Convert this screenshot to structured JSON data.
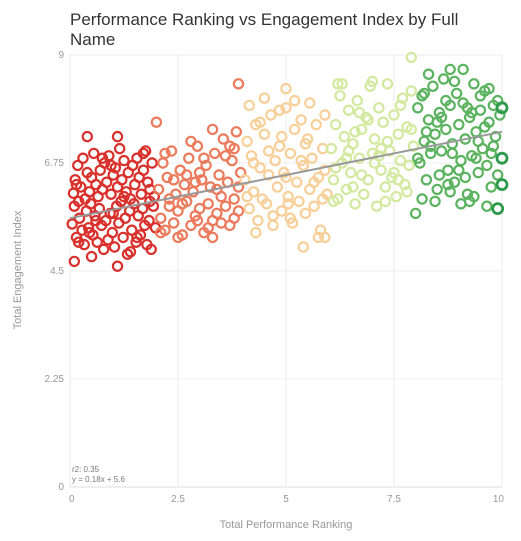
{
  "chart_data": {
    "type": "scatter",
    "title": "Performance Ranking vs Engagement Index by Full Name",
    "xlabel": "Total Performance Ranking",
    "ylabel": "Total Engagement Index",
    "xlim": [
      0,
      10
    ],
    "ylim": [
      0,
      9
    ],
    "x_ticks": [
      "0",
      "2.5",
      "5",
      "7.5",
      "10"
    ],
    "y_ticks": [
      "0",
      "2.25",
      "4.5",
      "6.75",
      "9"
    ],
    "grid": true,
    "legend": "none",
    "marker": "hollow circle",
    "color_encoding": "points colored by x value from red (low) to green (high)",
    "color_bands": [
      {
        "x_from": 0,
        "x_to": 2,
        "color": "#d9302c"
      },
      {
        "x_from": 2,
        "x_to": 4,
        "color": "#ec7a5c"
      },
      {
        "x_from": 4,
        "x_to": 6,
        "color": "#f8cf98"
      },
      {
        "x_from": 6,
        "x_to": 8,
        "color": "#d3e9a0"
      },
      {
        "x_from": 8,
        "x_to": 10,
        "color": "#5cb35f"
      }
    ],
    "regression": {
      "r2_label": "r2: 0.35",
      "equation_label": "y = 0.18x + 5.6",
      "slope": 0.18,
      "intercept": 5.6,
      "x_range": [
        0,
        10
      ],
      "color": "#999999"
    },
    "highlight_points": [
      {
        "x": 0.1,
        "y": 4.7
      },
      {
        "x": 0.5,
        "y": 4.8
      },
      {
        "x": 1.1,
        "y": 4.6
      },
      {
        "x": 0.4,
        "y": 7.3
      },
      {
        "x": 1.1,
        "y": 7.3
      },
      {
        "x": 2.0,
        "y": 7.6
      },
      {
        "x": 3.9,
        "y": 8.4
      },
      {
        "x": 5.0,
        "y": 8.3
      },
      {
        "x": 6.2,
        "y": 8.4
      },
      {
        "x": 7.9,
        "y": 8.95
      },
      {
        "x": 8.8,
        "y": 8.7
      },
      {
        "x": 9.1,
        "y": 8.7
      },
      {
        "x": 10.0,
        "y": 7.9
      },
      {
        "x": 10.0,
        "y": 6.85
      },
      {
        "x": 10.0,
        "y": 6.3
      },
      {
        "x": 9.9,
        "y": 5.8
      },
      {
        "x": 8.0,
        "y": 5.7
      },
      {
        "x": 5.4,
        "y": 5.0
      },
      {
        "x": 5.9,
        "y": 5.2
      },
      {
        "x": 3.3,
        "y": 5.2
      }
    ],
    "points": [
      [
        0.05,
        5.48
      ],
      [
        0.08,
        6.12
      ],
      [
        0.1,
        5.85
      ],
      [
        0.12,
        6.4
      ],
      [
        0.15,
        5.2
      ],
      [
        0.18,
        6.7
      ],
      [
        0.2,
        5.95
      ],
      [
        0.22,
        5.6
      ],
      [
        0.25,
        6.25
      ],
      [
        0.28,
        5.35
      ],
      [
        0.3,
        6.85
      ],
      [
        0.33,
        5.05
      ],
      [
        0.35,
        6.0
      ],
      [
        0.38,
        5.75
      ],
      [
        0.4,
        6.55
      ],
      [
        0.43,
        5.4
      ],
      [
        0.45,
        6.15
      ],
      [
        0.48,
        5.9
      ],
      [
        0.5,
        6.45
      ],
      [
        0.53,
        5.25
      ],
      [
        0.55,
        6.95
      ],
      [
        0.58,
        5.65
      ],
      [
        0.6,
        6.3
      ],
      [
        0.63,
        5.1
      ],
      [
        0.65,
        6.05
      ],
      [
        0.68,
        5.8
      ],
      [
        0.7,
        6.6
      ],
      [
        0.73,
        5.45
      ],
      [
        0.75,
        6.2
      ],
      [
        0.78,
        4.95
      ],
      [
        0.8,
        6.75
      ],
      [
        0.83,
        5.55
      ],
      [
        0.85,
        6.35
      ],
      [
        0.88,
        5.15
      ],
      [
        0.9,
        6.9
      ],
      [
        0.93,
        5.7
      ],
      [
        0.95,
        6.1
      ],
      [
        0.98,
        5.3
      ],
      [
        1.0,
        6.5
      ],
      [
        1.03,
        5.0
      ],
      [
        1.05,
        6.65
      ],
      [
        1.08,
        5.85
      ],
      [
        1.1,
        6.25
      ],
      [
        1.13,
        5.5
      ],
      [
        1.15,
        7.05
      ],
      [
        1.18,
        5.95
      ],
      [
        1.2,
        6.4
      ],
      [
        1.23,
        5.2
      ],
      [
        1.25,
        6.8
      ],
      [
        1.28,
        5.6
      ],
      [
        1.3,
        6.15
      ],
      [
        1.33,
        4.85
      ],
      [
        1.35,
        6.55
      ],
      [
        1.38,
        5.75
      ],
      [
        1.4,
        6.0
      ],
      [
        1.43,
        5.35
      ],
      [
        1.45,
        6.7
      ],
      [
        1.48,
        5.9
      ],
      [
        1.5,
        6.3
      ],
      [
        1.53,
        5.1
      ],
      [
        1.55,
        6.85
      ],
      [
        1.58,
        5.65
      ],
      [
        1.6,
        6.45
      ],
      [
        1.63,
        5.25
      ],
      [
        1.65,
        6.1
      ],
      [
        1.68,
        5.8
      ],
      [
        1.7,
        6.6
      ],
      [
        1.73,
        5.45
      ],
      [
        1.75,
        7.0
      ],
      [
        1.78,
        5.05
      ],
      [
        1.8,
        6.35
      ],
      [
        1.83,
        5.55
      ],
      [
        1.85,
        6.2
      ],
      [
        1.88,
        4.95
      ],
      [
        1.9,
        6.75
      ],
      [
        1.93,
        5.85
      ],
      [
        1.95,
        6.05
      ],
      [
        1.98,
        5.4
      ],
      [
        0.2,
        5.1
      ],
      [
        0.6,
        5.55
      ],
      [
        1.0,
        5.7
      ],
      [
        1.4,
        4.9
      ],
      [
        1.7,
        6.95
      ],
      [
        0.75,
        6.85
      ],
      [
        1.25,
        6.05
      ],
      [
        0.45,
        5.3
      ],
      [
        1.85,
        5.95
      ],
      [
        0.95,
        6.7
      ],
      [
        1.55,
        5.2
      ],
      [
        0.15,
        6.3
      ],
      [
        2.05,
        6.2
      ],
      [
        2.1,
        5.6
      ],
      [
        2.15,
        6.75
      ],
      [
        2.2,
        5.35
      ],
      [
        2.25,
        6.45
      ],
      [
        2.3,
        5.85
      ],
      [
        2.35,
        7.0
      ],
      [
        2.4,
        5.5
      ],
      [
        2.45,
        6.1
      ],
      [
        2.5,
        5.75
      ],
      [
        2.55,
        6.6
      ],
      [
        2.6,
        5.25
      ],
      [
        2.65,
        6.3
      ],
      [
        2.7,
        5.95
      ],
      [
        2.75,
        6.85
      ],
      [
        2.8,
        5.45
      ],
      [
        2.85,
        6.15
      ],
      [
        2.9,
        5.65
      ],
      [
        2.95,
        7.1
      ],
      [
        3.0,
        5.8
      ],
      [
        3.05,
        6.4
      ],
      [
        3.1,
        5.3
      ],
      [
        3.15,
        6.7
      ],
      [
        3.2,
        5.9
      ],
      [
        3.25,
        6.25
      ],
      [
        3.3,
        5.55
      ],
      [
        3.35,
        6.95
      ],
      [
        3.4,
        5.7
      ],
      [
        3.45,
        6.5
      ],
      [
        3.5,
        6.05
      ],
      [
        3.55,
        7.25
      ],
      [
        3.6,
        5.85
      ],
      [
        3.65,
        6.35
      ],
      [
        3.7,
        5.45
      ],
      [
        3.75,
        6.8
      ],
      [
        3.8,
        6.0
      ],
      [
        3.85,
        7.4
      ],
      [
        3.9,
        5.75
      ],
      [
        3.95,
        6.55
      ],
      [
        2.2,
        6.95
      ],
      [
        2.6,
        5.9
      ],
      [
        3.0,
        6.55
      ],
      [
        3.4,
        6.2
      ],
      [
        3.8,
        5.6
      ],
      [
        2.4,
        6.4
      ],
      [
        2.8,
        7.2
      ],
      [
        3.2,
        5.4
      ],
      [
        3.6,
        6.9
      ],
      [
        2.1,
        5.3
      ],
      [
        2.9,
        6.35
      ],
      [
        3.7,
        7.1
      ],
      [
        2.5,
        5.2
      ],
      [
        3.3,
        7.45
      ],
      [
        3.9,
        6.25
      ],
      [
        2.7,
        6.5
      ],
      [
        3.5,
        5.5
      ],
      [
        2.3,
        6.0
      ],
      [
        3.1,
        6.85
      ],
      [
        3.8,
        7.05
      ],
      [
        2.95,
        5.55
      ],
      [
        4.05,
        6.4
      ],
      [
        4.1,
        7.2
      ],
      [
        4.15,
        5.8
      ],
      [
        4.2,
        6.9
      ],
      [
        4.25,
        6.15
      ],
      [
        4.3,
        7.55
      ],
      [
        4.35,
        5.55
      ],
      [
        4.4,
        6.65
      ],
      [
        4.45,
        6.0
      ],
      [
        4.5,
        7.35
      ],
      [
        4.55,
        5.9
      ],
      [
        4.6,
        6.5
      ],
      [
        4.65,
        7.75
      ],
      [
        4.7,
        5.65
      ],
      [
        4.75,
        6.8
      ],
      [
        4.8,
        6.25
      ],
      [
        4.85,
        7.1
      ],
      [
        4.9,
        5.75
      ],
      [
        4.95,
        6.55
      ],
      [
        5.0,
        7.9
      ],
      [
        5.05,
        6.05
      ],
      [
        5.1,
        6.95
      ],
      [
        5.15,
        5.5
      ],
      [
        5.2,
        7.45
      ],
      [
        5.25,
        6.35
      ],
      [
        5.3,
        5.95
      ],
      [
        5.35,
        7.65
      ],
      [
        5.4,
        6.7
      ],
      [
        5.45,
        5.7
      ],
      [
        5.5,
        7.25
      ],
      [
        5.55,
        6.2
      ],
      [
        5.6,
        6.85
      ],
      [
        5.65,
        5.85
      ],
      [
        5.7,
        7.55
      ],
      [
        5.75,
        6.45
      ],
      [
        5.8,
        5.35
      ],
      [
        5.85,
        7.05
      ],
      [
        5.9,
        6.6
      ],
      [
        5.95,
        6.1
      ],
      [
        4.15,
        7.95
      ],
      [
        4.5,
        8.1
      ],
      [
        4.85,
        7.85
      ],
      [
        5.2,
        8.05
      ],
      [
        5.55,
        8.0
      ],
      [
        5.9,
        7.75
      ],
      [
        4.3,
        5.3
      ],
      [
        4.7,
        5.45
      ],
      [
        5.1,
        5.6
      ],
      [
        5.75,
        5.2
      ],
      [
        4.25,
        6.75
      ],
      [
        4.6,
        7.0
      ],
      [
        5.0,
        6.45
      ],
      [
        5.35,
        6.8
      ],
      [
        5.65,
        6.35
      ],
      [
        4.4,
        7.6
      ],
      [
        4.9,
        7.3
      ],
      [
        5.45,
        7.15
      ],
      [
        4.1,
        6.05
      ],
      [
        5.85,
        6.0
      ],
      [
        5.05,
        5.9
      ],
      [
        6.05,
        7.05
      ],
      [
        6.1,
        6.4
      ],
      [
        6.15,
        7.55
      ],
      [
        6.2,
        6.0
      ],
      [
        6.25,
        8.15
      ],
      [
        6.3,
        6.75
      ],
      [
        6.35,
        7.3
      ],
      [
        6.4,
        6.2
      ],
      [
        6.45,
        7.85
      ],
      [
        6.5,
        6.55
      ],
      [
        6.55,
        7.15
      ],
      [
        6.6,
        5.9
      ],
      [
        6.65,
        8.05
      ],
      [
        6.7,
        6.85
      ],
      [
        6.75,
        7.45
      ],
      [
        6.8,
        6.1
      ],
      [
        6.85,
        7.7
      ],
      [
        6.9,
        6.4
      ],
      [
        6.95,
        8.35
      ],
      [
        7.0,
        6.95
      ],
      [
        7.05,
        7.25
      ],
      [
        7.1,
        5.85
      ],
      [
        7.15,
        7.9
      ],
      [
        7.2,
        6.6
      ],
      [
        7.25,
        7.6
      ],
      [
        7.3,
        6.25
      ],
      [
        7.35,
        8.4
      ],
      [
        7.4,
        7.0
      ],
      [
        7.45,
        6.45
      ],
      [
        7.5,
        7.75
      ],
      [
        7.55,
        6.05
      ],
      [
        7.6,
        7.35
      ],
      [
        7.65,
        6.8
      ],
      [
        7.7,
        8.1
      ],
      [
        7.75,
        6.3
      ],
      [
        7.8,
        7.5
      ],
      [
        7.85,
        6.7
      ],
      [
        7.9,
        8.25
      ],
      [
        7.95,
        7.1
      ],
      [
        6.15,
        6.65
      ],
      [
        6.45,
        7.0
      ],
      [
        6.75,
        6.5
      ],
      [
        7.05,
        6.75
      ],
      [
        7.35,
        7.2
      ],
      [
        7.65,
        7.95
      ],
      [
        6.3,
        8.4
      ],
      [
        6.6,
        7.4
      ],
      [
        6.9,
        7.65
      ],
      [
        7.2,
        7.05
      ],
      [
        7.5,
        6.55
      ],
      [
        7.8,
        6.15
      ],
      [
        6.1,
        5.95
      ],
      [
        6.4,
        6.85
      ],
      [
        6.7,
        7.8
      ],
      [
        7.0,
        8.45
      ],
      [
        7.3,
        5.95
      ],
      [
        7.6,
        6.4
      ],
      [
        7.9,
        7.45
      ],
      [
        6.55,
        6.25
      ],
      [
        7.15,
        6.9
      ],
      [
        8.05,
        7.9
      ],
      [
        8.1,
        6.75
      ],
      [
        8.15,
        8.15
      ],
      [
        8.2,
        7.2
      ],
      [
        8.25,
        6.4
      ],
      [
        8.3,
        7.65
      ],
      [
        8.35,
        6.95
      ],
      [
        8.4,
        8.35
      ],
      [
        8.45,
        7.35
      ],
      [
        8.5,
        6.2
      ],
      [
        8.55,
        7.8
      ],
      [
        8.6,
        7.0
      ],
      [
        8.65,
        8.5
      ],
      [
        8.7,
        7.45
      ],
      [
        8.75,
        6.6
      ],
      [
        8.8,
        7.95
      ],
      [
        8.85,
        7.15
      ],
      [
        8.9,
        6.35
      ],
      [
        8.95,
        8.2
      ],
      [
        9.0,
        7.55
      ],
      [
        9.05,
        6.8
      ],
      [
        9.1,
        8.0
      ],
      [
        9.15,
        7.25
      ],
      [
        9.2,
        6.1
      ],
      [
        9.25,
        7.7
      ],
      [
        9.3,
        6.9
      ],
      [
        9.35,
        8.4
      ],
      [
        9.4,
        7.4
      ],
      [
        9.45,
        6.55
      ],
      [
        9.5,
        7.85
      ],
      [
        9.55,
        7.05
      ],
      [
        9.6,
        8.25
      ],
      [
        9.65,
        6.7
      ],
      [
        9.7,
        7.6
      ],
      [
        9.75,
        6.25
      ],
      [
        9.8,
        7.95
      ],
      [
        9.85,
        7.3
      ],
      [
        9.9,
        6.5
      ],
      [
        9.95,
        7.75
      ],
      [
        8.15,
        6.0
      ],
      [
        8.45,
        5.95
      ],
      [
        8.75,
        6.3
      ],
      [
        9.05,
        5.9
      ],
      [
        9.35,
        6.05
      ],
      [
        9.65,
        5.85
      ],
      [
        8.3,
        8.6
      ],
      [
        8.6,
        7.7
      ],
      [
        8.9,
        8.45
      ],
      [
        9.2,
        7.9
      ],
      [
        9.5,
        8.15
      ],
      [
        9.8,
        7.1
      ],
      [
        8.25,
        7.4
      ],
      [
        8.55,
        6.5
      ],
      [
        8.85,
        6.95
      ],
      [
        9.15,
        6.45
      ],
      [
        9.45,
        7.2
      ],
      [
        9.75,
        6.95
      ],
      [
        8.05,
        6.85
      ],
      [
        8.35,
        7.1
      ],
      [
        8.7,
        8.05
      ],
      [
        9.0,
        6.6
      ],
      [
        9.3,
        7.8
      ],
      [
        9.6,
        7.5
      ],
      [
        9.9,
        8.05
      ],
      [
        8.2,
        8.2
      ],
      [
        8.5,
        7.6
      ],
      [
        9.4,
        6.85
      ],
      [
        9.7,
        8.3
      ],
      [
        8.8,
        6.15
      ],
      [
        9.25,
        5.95
      ]
    ]
  }
}
